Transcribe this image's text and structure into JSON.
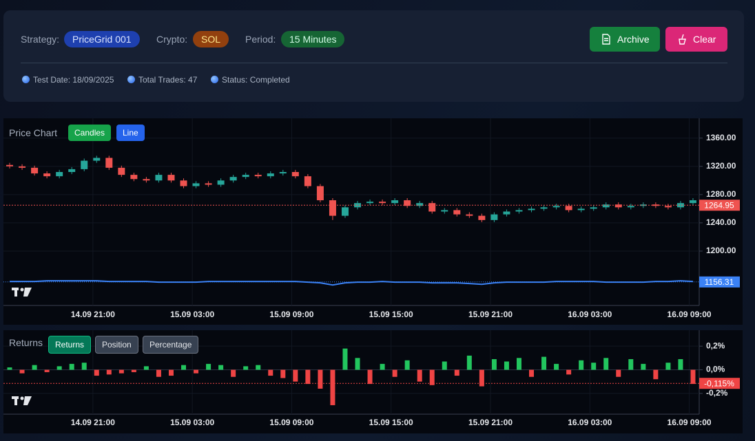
{
  "header": {
    "strategy_label": "Strategy:",
    "strategy": "PriceGrid 001",
    "crypto_label": "Crypto:",
    "crypto": "SOL",
    "period_label": "Period:",
    "period": "15 Minutes",
    "buttons": [
      "Archive",
      "Clear"
    ],
    "info": [
      "Test Date: 18/09/2025",
      "Total Trades: 47",
      "Status: Completed"
    ]
  },
  "chart_data": [
    {
      "type": "candlestick",
      "title": "Price Chart",
      "buttons": [
        "Candles",
        "Line"
      ],
      "up_color": "#26a69a",
      "down_color": "#ef5350",
      "open": [
        1322,
        1320,
        1318,
        1310,
        1306,
        1312,
        1316,
        1328,
        1332,
        1318,
        1308,
        1302,
        1300,
        1308,
        1300,
        1292,
        1296,
        1294,
        1300,
        1305,
        1308,
        1306,
        1310,
        1312,
        1306,
        1292,
        1272,
        1250,
        1262,
        1268,
        1270,
        1268,
        1272,
        1264,
        1268,
        1256,
        1258,
        1252,
        1250,
        1244,
        1252,
        1256,
        1258,
        1260,
        1262,
        1264,
        1258,
        1260,
        1262,
        1266,
        1262,
        1264,
        1266,
        1264,
        1262,
        1268
      ],
      "high": [
        1325,
        1323,
        1321,
        1313,
        1315,
        1319,
        1331,
        1335,
        1335,
        1321,
        1311,
        1305,
        1311,
        1311,
        1303,
        1299,
        1299,
        1303,
        1308,
        1311,
        1311,
        1313,
        1315,
        1315,
        1309,
        1295,
        1275,
        1265,
        1271,
        1273,
        1273,
        1275,
        1275,
        1271,
        1271,
        1261,
        1261,
        1255,
        1253,
        1255,
        1259,
        1261,
        1263,
        1265,
        1267,
        1267,
        1263,
        1265,
        1269,
        1269,
        1267,
        1269,
        1269,
        1267,
        1271,
        1275
      ],
      "low": [
        1317,
        1315,
        1307,
        1303,
        1303,
        1309,
        1313,
        1325,
        1315,
        1305,
        1299,
        1297,
        1297,
        1297,
        1289,
        1289,
        1291,
        1291,
        1297,
        1302,
        1303,
        1303,
        1307,
        1303,
        1289,
        1269,
        1244,
        1247,
        1259,
        1265,
        1265,
        1265,
        1261,
        1261,
        1253,
        1253,
        1249,
        1247,
        1241,
        1241,
        1249,
        1253,
        1255,
        1257,
        1259,
        1255,
        1255,
        1257,
        1259,
        1259,
        1259,
        1261,
        1261,
        1259,
        1259,
        1265
      ],
      "close": [
        1320,
        1318,
        1310,
        1306,
        1312,
        1316,
        1328,
        1332,
        1318,
        1308,
        1302,
        1300,
        1308,
        1300,
        1292,
        1296,
        1294,
        1300,
        1305,
        1308,
        1306,
        1310,
        1312,
        1306,
        1292,
        1272,
        1250,
        1262,
        1268,
        1270,
        1268,
        1272,
        1264,
        1268,
        1256,
        1258,
        1252,
        1250,
        1244,
        1252,
        1256,
        1258,
        1260,
        1262,
        1264,
        1258,
        1260,
        1262,
        1266,
        1262,
        1264,
        1266,
        1264,
        1262,
        1268,
        1272
      ],
      "line": {
        "color": "#3b82f6",
        "values": [
          1157,
          1157,
          1157,
          1158,
          1158,
          1158,
          1158,
          1158,
          1157,
          1157,
          1157,
          1157,
          1156,
          1156,
          1156,
          1156,
          1157,
          1157,
          1157,
          1157,
          1157,
          1157,
          1157,
          1157,
          1156,
          1155,
          1152,
          1155,
          1156,
          1156,
          1157,
          1156,
          1156,
          1156,
          1155,
          1155,
          1155,
          1154,
          1153,
          1155,
          1156,
          1156,
          1156,
          1156,
          1157,
          1157,
          1157,
          1157,
          1156,
          1156,
          1156,
          1156,
          1157,
          1157,
          1158,
          1157
        ]
      },
      "last_price": {
        "value": 1264.95,
        "label": "1264.95",
        "color": "#ef5350"
      },
      "line_last": {
        "value": 1156.31,
        "label": "1156.31",
        "color": "#3b82f6"
      },
      "xlim": [
        0,
        56
      ],
      "xticks": [
        {
          "value": 7.2,
          "label": "14.09 21:00"
        },
        {
          "value": 15.2,
          "label": "15.09 03:00"
        },
        {
          "value": 23.2,
          "label": "15.09 09:00"
        },
        {
          "value": 31.2,
          "label": "15.09 15:00"
        },
        {
          "value": 39.2,
          "label": "15.09 21:00"
        },
        {
          "value": 47.2,
          "label": "16.09 03:00"
        },
        {
          "value": 55.2,
          "label": "16.09 09:00"
        }
      ],
      "ylim": [
        1123,
        1388
      ],
      "yticks": [
        {
          "value": 1200,
          "label": "1200.00"
        },
        {
          "value": 1240,
          "label": "1240.00"
        },
        {
          "value": 1280,
          "label": "1280.00"
        },
        {
          "value": 1320,
          "label": "1320.00"
        },
        {
          "value": 1360,
          "label": "1360.00"
        }
      ],
      "grid": true
    },
    {
      "type": "bar",
      "title": "Returns",
      "buttons": [
        "Returns",
        "Position",
        "Percentage"
      ],
      "up_color": "#22c55e",
      "down_color": "#ef4444",
      "values": [
        0.02,
        -0.03,
        0.04,
        -0.02,
        0.03,
        0.05,
        0.06,
        -0.05,
        -0.04,
        -0.03,
        -0.02,
        0.03,
        -0.06,
        -0.05,
        0.04,
        -0.03,
        0.05,
        0.04,
        -0.06,
        0.03,
        0.04,
        -0.05,
        -0.07,
        -0.1,
        -0.12,
        -0.16,
        -0.3,
        0.18,
        0.1,
        -0.12,
        0.05,
        -0.06,
        0.08,
        -0.1,
        -0.13,
        0.07,
        -0.05,
        0.12,
        -0.14,
        0.09,
        0.07,
        0.1,
        -0.06,
        0.11,
        0.05,
        -0.04,
        0.08,
        0.06,
        0.1,
        -0.06,
        0.09,
        0.05,
        -0.08,
        0.06,
        0.09,
        -0.12
      ],
      "last_price": {
        "value": -0.115,
        "label": "-0,115%",
        "color": "#ef4444"
      },
      "xlim": [
        0,
        56
      ],
      "xticks": [
        {
          "value": 7.2,
          "label": "14.09 21:00"
        },
        {
          "value": 15.2,
          "label": "15.09 03:00"
        },
        {
          "value": 23.2,
          "label": "15.09 09:00"
        },
        {
          "value": 31.2,
          "label": "15.09 15:00"
        },
        {
          "value": 39.2,
          "label": "15.09 21:00"
        },
        {
          "value": 47.2,
          "label": "16.09 03:00"
        },
        {
          "value": 55.2,
          "label": "16.09 09:00"
        }
      ],
      "ylim": [
        -0.376,
        0.335
      ],
      "yticks": [
        {
          "value": -0.2,
          "label": "-0,2%"
        },
        {
          "value": 0,
          "label": "0,0%"
        },
        {
          "value": 0.2,
          "label": "0,2%"
        }
      ],
      "grid": true
    }
  ]
}
